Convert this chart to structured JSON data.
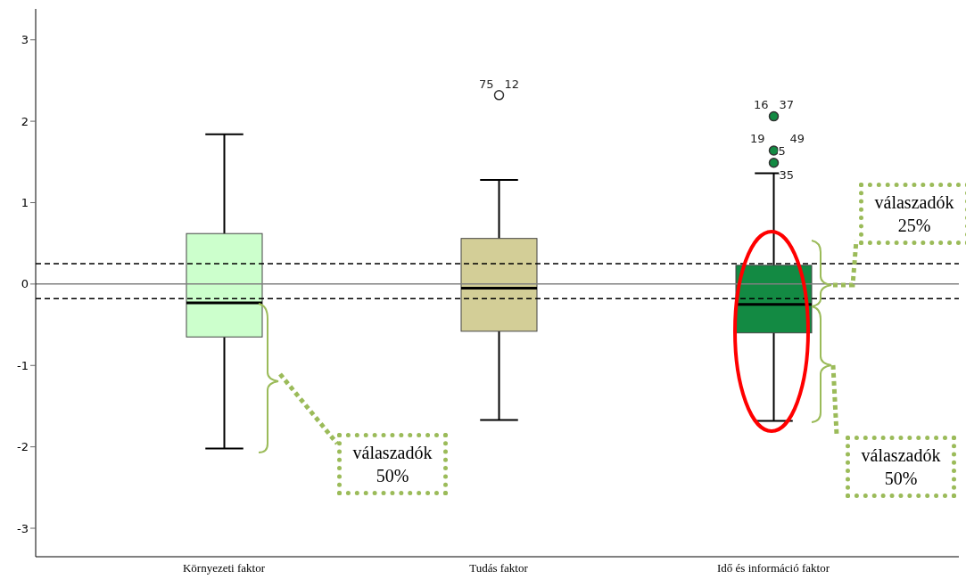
{
  "chart_data": {
    "type": "box",
    "categories": [
      "Környezeti faktor",
      "Tudás faktor",
      "Idő és információ faktor"
    ],
    "colors": [
      "#ccffcc",
      "#d3ce97",
      "#138a43"
    ],
    "boxes": [
      {
        "low": -2.02,
        "q1": -0.65,
        "median": -0.23,
        "q3": 0.62,
        "high": 1.84
      },
      {
        "low": -1.67,
        "q1": -0.58,
        "median": -0.05,
        "q3": 0.56,
        "high": 1.28,
        "outliers": [
          2.32
        ]
      },
      {
        "low": -1.68,
        "q1": -0.6,
        "median": -0.25,
        "q3": 0.23,
        "high": 1.36,
        "outliers": [
          2.06,
          1.64,
          1.49
        ]
      }
    ],
    "ylim": [
      -3.35,
      3.38
    ],
    "yticks": [
      -3,
      -2,
      -1,
      0,
      1,
      2,
      3
    ],
    "grid": false,
    "ref_lines": [
      {
        "axis": "y",
        "value": 0,
        "color": "#808080",
        "line_style": "solid"
      },
      {
        "axis": "y",
        "value": 0.25,
        "color": "#000000",
        "line_style": "dashed"
      },
      {
        "axis": "y",
        "value": -0.18,
        "color": "#000000",
        "line_style": "dashed"
      }
    ],
    "annotations": [
      "75",
      "12",
      "16",
      "37",
      "19",
      "49",
      "5",
      "35",
      "válaszadók 50%",
      "válaszadók 25%",
      "válaszadók 50%"
    ]
  }
}
